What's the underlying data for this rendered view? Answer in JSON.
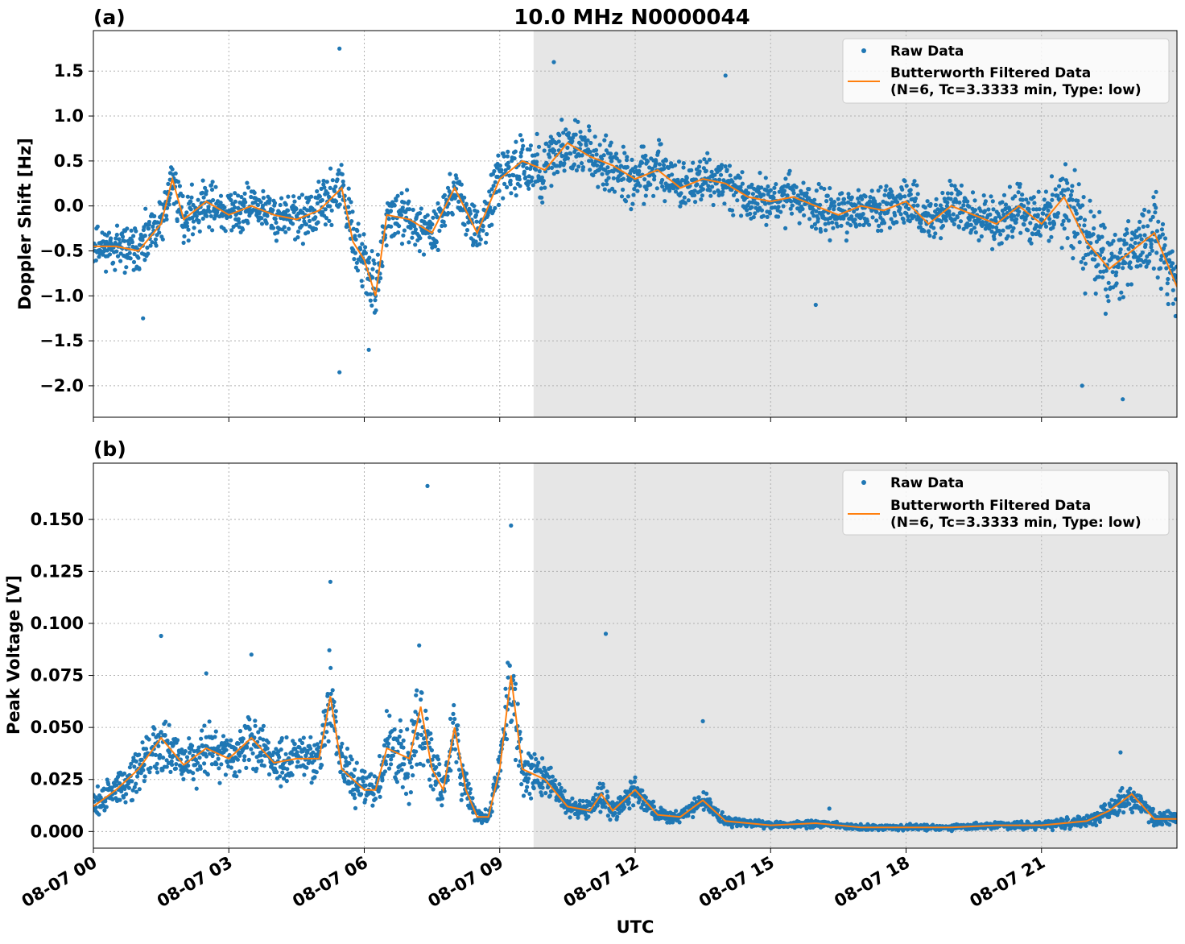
{
  "title": "10.0 MHz N0000044",
  "xlabel": "UTC",
  "x_ticks": [
    "08-07 00",
    "08-07 03",
    "08-07 06",
    "08-07 09",
    "08-07 12",
    "08-07 15",
    "08-07 18",
    "08-07 21"
  ],
  "x_range_hours": [
    0,
    24
  ],
  "shaded_region_hours": [
    9.75,
    24
  ],
  "colors": {
    "raw": "#1f77b4",
    "filtered": "#ff7f0e",
    "shade": "#e6e6e6"
  },
  "legend": {
    "raw_label": "Raw Data",
    "filtered_line1": "Butterworth Filtered Data",
    "filtered_line2": "(N=6, Tc=3.3333 min, Type: low)"
  },
  "chart_data": [
    {
      "type": "scatter",
      "panel_label": "(a)",
      "ylabel": "Doppler Shift [Hz]",
      "ylim": [
        -2.35,
        1.95
      ],
      "y_ticks": [
        -2.0,
        -1.5,
        -1.0,
        -0.5,
        0.0,
        0.5,
        1.0,
        1.5
      ],
      "y_tick_labels": [
        "−2.0",
        "−1.5",
        "−1.0",
        "−0.5",
        "0.0",
        "0.5",
        "1.0",
        "1.5"
      ],
      "grid": true,
      "legend_position": "top-right",
      "x_unit": "hours UTC 08-07",
      "series": [
        {
          "name": "Butterworth Filtered Data",
          "kind": "line",
          "x": [
            0,
            0.5,
            1.0,
            1.5,
            1.75,
            2.0,
            2.5,
            3.0,
            3.5,
            4.0,
            4.5,
            5.0,
            5.5,
            5.75,
            6.0,
            6.25,
            6.5,
            7.0,
            7.5,
            8.0,
            8.5,
            9.0,
            9.5,
            10.0,
            10.5,
            11.0,
            11.5,
            12.0,
            12.5,
            13.0,
            13.5,
            14.0,
            14.5,
            15.0,
            15.5,
            16.0,
            16.5,
            17.0,
            17.5,
            18.0,
            18.5,
            19.0,
            19.5,
            20.0,
            20.5,
            21.0,
            21.5,
            22.0,
            22.5,
            23.0,
            23.5,
            24.0
          ],
          "y": [
            -0.45,
            -0.45,
            -0.5,
            -0.2,
            0.3,
            -0.15,
            0.05,
            -0.1,
            0.0,
            -0.1,
            -0.15,
            -0.05,
            0.2,
            -0.4,
            -0.6,
            -1.0,
            -0.1,
            -0.15,
            -0.3,
            0.2,
            -0.3,
            0.3,
            0.5,
            0.4,
            0.7,
            0.55,
            0.45,
            0.3,
            0.4,
            0.2,
            0.3,
            0.25,
            0.1,
            0.05,
            0.1,
            0.0,
            -0.1,
            0.0,
            -0.05,
            0.05,
            -0.2,
            0.0,
            -0.1,
            -0.2,
            0.0,
            -0.2,
            0.1,
            -0.4,
            -0.7,
            -0.5,
            -0.3,
            -0.9
          ]
        },
        {
          "name": "Raw Data",
          "kind": "scatter",
          "spread": [
            0.25,
            0.25,
            0.3,
            0.35,
            0.3,
            0.3,
            0.3,
            0.3,
            0.3,
            0.3,
            0.3,
            0.3,
            0.35,
            0.4,
            0.4,
            0.35,
            0.3,
            0.3,
            0.3,
            0.3,
            0.3,
            0.3,
            0.35,
            0.4,
            0.4,
            0.35,
            0.35,
            0.35,
            0.35,
            0.3,
            0.3,
            0.3,
            0.3,
            0.3,
            0.3,
            0.3,
            0.3,
            0.3,
            0.3,
            0.3,
            0.3,
            0.3,
            0.3,
            0.3,
            0.35,
            0.4,
            0.5,
            0.55,
            0.55,
            0.45,
            0.45,
            0.5
          ],
          "outliers": [
            [
              5.45,
              1.75
            ],
            [
              5.45,
              -1.85
            ],
            [
              10.2,
              1.6
            ],
            [
              14.0,
              1.45
            ],
            [
              21.9,
              -2.0
            ],
            [
              22.8,
              -2.15
            ],
            [
              16.0,
              -1.1
            ],
            [
              6.1,
              -1.6
            ],
            [
              1.1,
              -1.25
            ]
          ]
        }
      ]
    },
    {
      "type": "scatter",
      "panel_label": "(b)",
      "xlabel": "UTC",
      "ylabel": "Peak Voltage [V]",
      "ylim": [
        -0.008,
        0.177
      ],
      "y_ticks": [
        0.0,
        0.025,
        0.05,
        0.075,
        0.1,
        0.125,
        0.15
      ],
      "y_tick_labels": [
        "0.000",
        "0.025",
        "0.050",
        "0.075",
        "0.100",
        "0.125",
        "0.150"
      ],
      "grid": true,
      "legend_position": "top-right",
      "x_unit": "hours UTC 08-07",
      "series": [
        {
          "name": "Butterworth Filtered Data",
          "kind": "line",
          "x": [
            0,
            0.5,
            1.0,
            1.5,
            2.0,
            2.5,
            3.0,
            3.5,
            4.0,
            4.5,
            5.0,
            5.25,
            5.5,
            6.0,
            6.25,
            6.5,
            7.0,
            7.25,
            7.5,
            7.75,
            8.0,
            8.25,
            8.5,
            8.75,
            9.0,
            9.25,
            9.5,
            10.0,
            10.5,
            11.0,
            11.25,
            11.5,
            12.0,
            12.5,
            13.0,
            13.5,
            14.0,
            14.5,
            15.0,
            16.0,
            17.0,
            18.0,
            19.0,
            20.0,
            21.0,
            22.0,
            22.5,
            23.0,
            23.5,
            24.0
          ],
          "y": [
            0.012,
            0.02,
            0.03,
            0.045,
            0.032,
            0.04,
            0.035,
            0.045,
            0.033,
            0.035,
            0.035,
            0.065,
            0.03,
            0.02,
            0.02,
            0.04,
            0.035,
            0.06,
            0.03,
            0.02,
            0.05,
            0.02,
            0.007,
            0.007,
            0.03,
            0.075,
            0.03,
            0.025,
            0.012,
            0.01,
            0.018,
            0.01,
            0.02,
            0.008,
            0.007,
            0.015,
            0.005,
            0.004,
            0.003,
            0.004,
            0.002,
            0.002,
            0.002,
            0.003,
            0.003,
            0.005,
            0.01,
            0.018,
            0.006,
            0.006
          ]
        },
        {
          "name": "Raw Data",
          "kind": "scatter",
          "spread": [
            0.008,
            0.01,
            0.012,
            0.015,
            0.012,
            0.014,
            0.013,
            0.015,
            0.012,
            0.013,
            0.015,
            0.025,
            0.015,
            0.01,
            0.01,
            0.02,
            0.02,
            0.03,
            0.02,
            0.012,
            0.02,
            0.01,
            0.004,
            0.004,
            0.012,
            0.03,
            0.015,
            0.012,
            0.006,
            0.005,
            0.008,
            0.005,
            0.008,
            0.004,
            0.003,
            0.006,
            0.003,
            0.002,
            0.002,
            0.002,
            0.0015,
            0.0015,
            0.0015,
            0.002,
            0.002,
            0.004,
            0.005,
            0.008,
            0.004,
            0.004
          ],
          "outliers": [
            [
              7.4,
              0.166
            ],
            [
              9.25,
              0.147
            ],
            [
              5.25,
              0.12
            ],
            [
              11.35,
              0.095
            ],
            [
              1.5,
              0.094
            ],
            [
              2.5,
              0.076
            ],
            [
              3.5,
              0.085
            ],
            [
              13.5,
              0.053
            ],
            [
              22.75,
              0.038
            ],
            [
              16.3,
              0.011
            ]
          ]
        }
      ]
    }
  ]
}
